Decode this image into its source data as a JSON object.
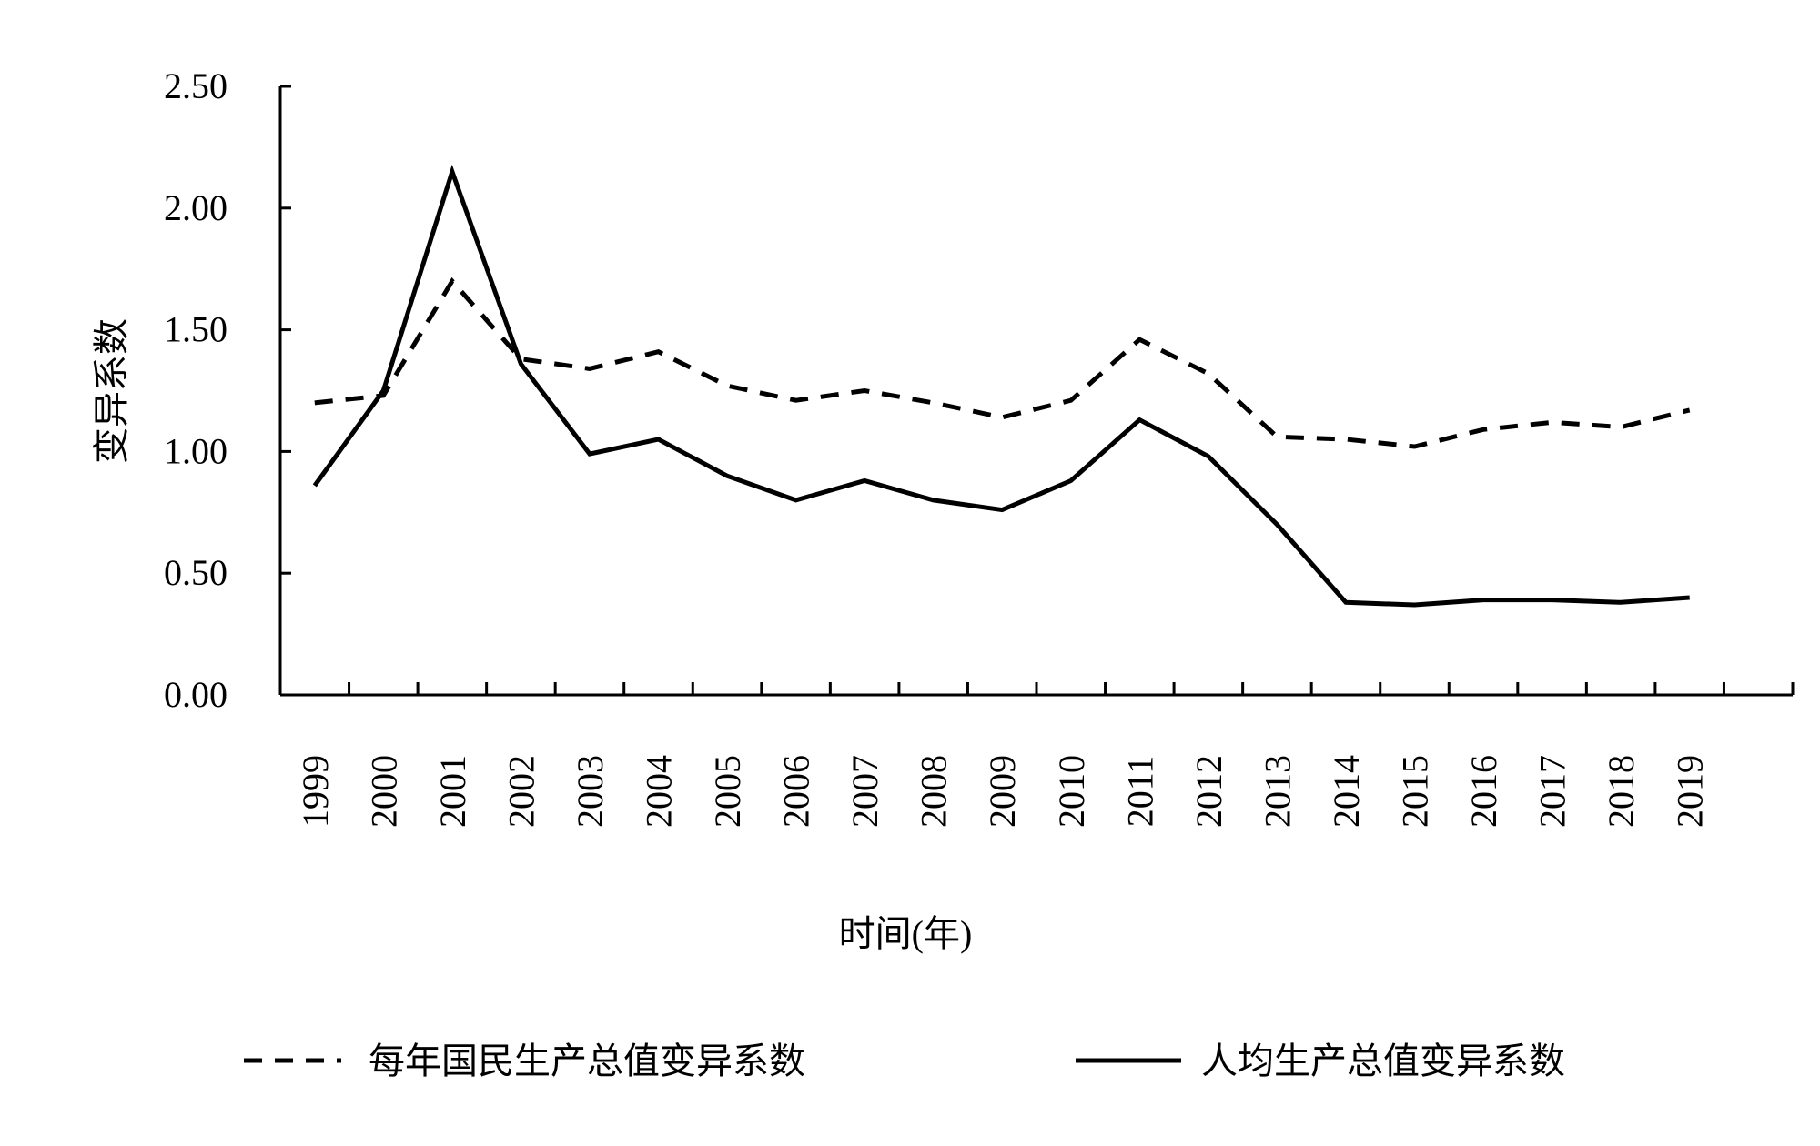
{
  "chart_data": {
    "type": "line",
    "title": "",
    "xlabel": "时间(年)",
    "ylabel": "变异系数",
    "ylim": [
      0,
      2.5
    ],
    "yticks": [
      "0.00",
      "0.50",
      "1.00",
      "1.50",
      "2.00",
      "2.50"
    ],
    "ytick_values": [
      0,
      0.5,
      1.0,
      1.5,
      2.0,
      2.5
    ],
    "grid": false,
    "legend_position": "bottom",
    "categories": [
      "1999",
      "2000",
      "2001",
      "2002",
      "2003",
      "2004",
      "2005",
      "2006",
      "2007",
      "2008",
      "2009",
      "2010",
      "2011",
      "2012",
      "2013",
      "2014",
      "2015",
      "2016",
      "2017",
      "2018",
      "2019"
    ],
    "series": [
      {
        "name": "每年国民生产总值变异系数",
        "style": "dashed",
        "color": "#000000",
        "values": [
          1.2,
          1.23,
          1.7,
          1.38,
          1.34,
          1.41,
          1.27,
          1.21,
          1.25,
          1.2,
          1.14,
          1.21,
          1.46,
          1.32,
          1.06,
          1.05,
          1.02,
          1.09,
          1.12,
          1.1,
          1.17
        ]
      },
      {
        "name": "人均生产总值变异系数",
        "style": "solid",
        "color": "#000000",
        "values": [
          0.86,
          1.25,
          2.15,
          1.36,
          0.99,
          1.05,
          0.9,
          0.8,
          0.88,
          0.8,
          0.76,
          0.88,
          1.13,
          0.98,
          0.7,
          0.38,
          0.37,
          0.39,
          0.39,
          0.38,
          0.4
        ]
      }
    ]
  }
}
